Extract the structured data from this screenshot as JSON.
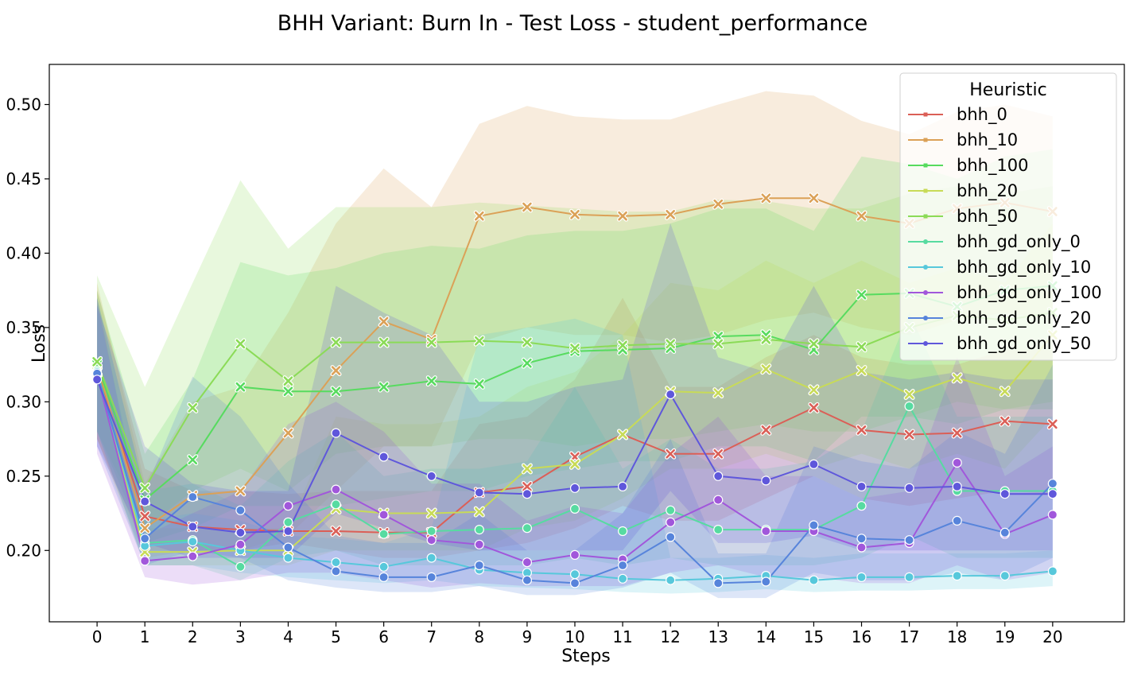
{
  "chart_data": {
    "type": "line",
    "title": "BHH Variant: Burn In - Test Loss - student_performance",
    "xlabel": "Steps",
    "ylabel": "Loss",
    "x": [
      0,
      1,
      2,
      3,
      4,
      5,
      6,
      7,
      8,
      9,
      10,
      11,
      12,
      13,
      14,
      15,
      16,
      17,
      18,
      19,
      20
    ],
    "xlim": [
      -1,
      21.5
    ],
    "ylim": [
      0.152,
      0.527
    ],
    "yticks": [
      0.2,
      0.25,
      0.3,
      0.35,
      0.4,
      0.45,
      0.5
    ],
    "ytick_labels": [
      "0.20",
      "0.25",
      "0.30",
      "0.35",
      "0.40",
      "0.45",
      "0.50"
    ],
    "grid": false,
    "legend": {
      "title": "Heuristic",
      "placement": "top-right"
    },
    "series": [
      {
        "name": "bhh_0",
        "color": "#db5f57",
        "marker": "x",
        "values": [
          0.321,
          0.223,
          0.216,
          0.214,
          0.213,
          0.213,
          0.212,
          0.212,
          0.239,
          0.243,
          0.263,
          0.278,
          0.265,
          0.265,
          0.281,
          0.296,
          0.281,
          0.278,
          0.279,
          0.287,
          0.285
        ],
        "lower": [
          0.275,
          0.2,
          0.2,
          0.2,
          0.205,
          0.2,
          0.195,
          0.195,
          0.2,
          0.205,
          0.215,
          0.23,
          0.22,
          0.22,
          0.235,
          0.25,
          0.235,
          0.23,
          0.235,
          0.24,
          0.238
        ],
        "upper": [
          0.375,
          0.255,
          0.24,
          0.24,
          0.238,
          0.24,
          0.24,
          0.24,
          0.285,
          0.29,
          0.315,
          0.37,
          0.31,
          0.31,
          0.33,
          0.345,
          0.33,
          0.325,
          0.325,
          0.335,
          0.335
        ]
      },
      {
        "name": "bhh_10",
        "color": "#dba157",
        "marker": "x",
        "values": [
          0.325,
          0.215,
          0.237,
          0.24,
          0.279,
          0.321,
          0.354,
          0.342,
          0.425,
          0.431,
          0.426,
          0.425,
          0.426,
          0.433,
          0.437,
          0.437,
          0.425,
          0.42,
          0.43,
          0.434,
          0.428
        ],
        "lower": [
          0.275,
          0.195,
          0.2,
          0.2,
          0.21,
          0.24,
          0.27,
          0.27,
          0.34,
          0.35,
          0.345,
          0.345,
          0.34,
          0.345,
          0.355,
          0.36,
          0.35,
          0.345,
          0.355,
          0.36,
          0.355
        ],
        "upper": [
          0.38,
          0.245,
          0.3,
          0.31,
          0.36,
          0.42,
          0.457,
          0.431,
          0.487,
          0.499,
          0.492,
          0.49,
          0.49,
          0.5,
          0.509,
          0.506,
          0.489,
          0.48,
          0.495,
          0.5,
          0.492
        ]
      },
      {
        "name": "bhh_100",
        "color": "#57db5f",
        "marker": "x",
        "values": [
          0.325,
          0.234,
          0.261,
          0.31,
          0.307,
          0.307,
          0.31,
          0.314,
          0.312,
          0.326,
          0.334,
          0.335,
          0.336,
          0.344,
          0.345,
          0.335,
          0.372,
          0.373,
          0.364,
          0.375,
          0.378
        ],
        "lower": [
          0.28,
          0.205,
          0.215,
          0.23,
          0.23,
          0.23,
          0.235,
          0.24,
          0.24,
          0.25,
          0.255,
          0.26,
          0.26,
          0.27,
          0.27,
          0.26,
          0.29,
          0.29,
          0.285,
          0.295,
          0.295
        ],
        "upper": [
          0.375,
          0.265,
          0.315,
          0.394,
          0.385,
          0.39,
          0.4,
          0.405,
          0.403,
          0.412,
          0.415,
          0.415,
          0.42,
          0.43,
          0.43,
          0.415,
          0.465,
          0.46,
          0.45,
          0.465,
          0.47
        ]
      },
      {
        "name": "bhh_20",
        "color": "#c8db57",
        "marker": "x",
        "values": [
          0.32,
          0.199,
          0.199,
          0.2,
          0.2,
          0.228,
          0.225,
          0.225,
          0.226,
          0.255,
          0.258,
          0.278,
          0.307,
          0.306,
          0.322,
          0.308,
          0.321,
          0.305,
          0.316,
          0.307,
          0.345
        ],
        "lower": [
          0.275,
          0.19,
          0.19,
          0.19,
          0.19,
          0.2,
          0.2,
          0.2,
          0.2,
          0.215,
          0.22,
          0.235,
          0.255,
          0.255,
          0.265,
          0.255,
          0.265,
          0.255,
          0.265,
          0.255,
          0.29
        ],
        "upper": [
          0.37,
          0.215,
          0.215,
          0.215,
          0.215,
          0.29,
          0.285,
          0.285,
          0.29,
          0.31,
          0.32,
          0.345,
          0.38,
          0.375,
          0.395,
          0.38,
          0.395,
          0.38,
          0.39,
          0.38,
          0.42
        ]
      },
      {
        "name": "bhh_50",
        "color": "#8bdb57",
        "marker": "x",
        "values": [
          0.327,
          0.242,
          0.296,
          0.339,
          0.314,
          0.34,
          0.34,
          0.34,
          0.341,
          0.34,
          0.336,
          0.338,
          0.339,
          0.339,
          0.342,
          0.339,
          0.337,
          0.35,
          0.358,
          0.355,
          0.36
        ],
        "lower": [
          0.28,
          0.215,
          0.24,
          0.255,
          0.24,
          0.265,
          0.27,
          0.27,
          0.275,
          0.275,
          0.27,
          0.275,
          0.275,
          0.28,
          0.285,
          0.28,
          0.28,
          0.29,
          0.3,
          0.295,
          0.3
        ],
        "upper": [
          0.385,
          0.31,
          0.38,
          0.449,
          0.403,
          0.431,
          0.431,
          0.431,
          0.434,
          0.432,
          0.43,
          0.428,
          0.428,
          0.436,
          0.435,
          0.43,
          0.43,
          0.44,
          0.445,
          0.44,
          0.445
        ]
      },
      {
        "name": "bhh_gd_only_0",
        "color": "#57dba1",
        "marker": "o",
        "values": [
          0.321,
          0.205,
          0.207,
          0.189,
          0.219,
          0.231,
          0.211,
          0.213,
          0.214,
          0.215,
          0.228,
          0.213,
          0.227,
          0.214,
          0.214,
          0.214,
          0.23,
          0.297,
          0.24,
          0.24,
          0.24
        ],
        "lower": [
          0.28,
          0.19,
          0.19,
          0.18,
          0.195,
          0.2,
          0.19,
          0.19,
          0.19,
          0.19,
          0.195,
          0.19,
          0.195,
          0.19,
          0.19,
          0.19,
          0.195,
          0.21,
          0.195,
          0.195,
          0.195
        ],
        "upper": [
          0.37,
          0.24,
          0.245,
          0.23,
          0.26,
          0.28,
          0.25,
          0.255,
          0.255,
          0.26,
          0.31,
          0.255,
          0.275,
          0.255,
          0.255,
          0.26,
          0.28,
          0.36,
          0.29,
          0.29,
          0.29
        ]
      },
      {
        "name": "bhh_gd_only_10",
        "color": "#57c8db",
        "marker": "o",
        "values": [
          0.32,
          0.203,
          0.206,
          0.2,
          0.195,
          0.192,
          0.189,
          0.195,
          0.187,
          0.185,
          0.184,
          0.181,
          0.18,
          0.181,
          0.183,
          0.18,
          0.182,
          0.182,
          0.183,
          0.183,
          0.186
        ],
        "lower": [
          0.28,
          0.19,
          0.19,
          0.185,
          0.182,
          0.18,
          0.178,
          0.18,
          0.176,
          0.175,
          0.174,
          0.172,
          0.171,
          0.172,
          0.174,
          0.172,
          0.173,
          0.173,
          0.174,
          0.174,
          0.176
        ],
        "upper": [
          0.365,
          0.22,
          0.225,
          0.22,
          0.21,
          0.208,
          0.205,
          0.215,
          0.345,
          0.35,
          0.356,
          0.345,
          0.195,
          0.195,
          0.197,
          0.195,
          0.198,
          0.198,
          0.198,
          0.198,
          0.2
        ]
      },
      {
        "name": "bhh_gd_only_100",
        "color": "#a157db",
        "marker": "o",
        "values": [
          0.318,
          0.193,
          0.196,
          0.204,
          0.23,
          0.241,
          0.224,
          0.207,
          0.204,
          0.192,
          0.197,
          0.194,
          0.219,
          0.234,
          0.213,
          0.213,
          0.202,
          0.205,
          0.259,
          0.211,
          0.224
        ],
        "lower": [
          0.265,
          0.182,
          0.177,
          0.18,
          0.185,
          0.185,
          0.18,
          0.175,
          0.178,
          0.176,
          0.176,
          0.176,
          0.185,
          0.19,
          0.182,
          0.182,
          0.178,
          0.178,
          0.19,
          0.18,
          0.185
        ],
        "upper": [
          0.37,
          0.21,
          0.225,
          0.24,
          0.285,
          0.3,
          0.28,
          0.245,
          0.245,
          0.22,
          0.23,
          0.225,
          0.265,
          0.29,
          0.25,
          0.25,
          0.235,
          0.24,
          0.33,
          0.25,
          0.27
        ]
      },
      {
        "name": "bhh_gd_only_20",
        "color": "#5784db",
        "marker": "o",
        "values": [
          0.319,
          0.208,
          0.236,
          0.227,
          0.202,
          0.186,
          0.182,
          0.182,
          0.19,
          0.18,
          0.178,
          0.19,
          0.209,
          0.178,
          0.179,
          0.217,
          0.208,
          0.207,
          0.22,
          0.212,
          0.245
        ],
        "lower": [
          0.27,
          0.19,
          0.2,
          0.195,
          0.18,
          0.175,
          0.172,
          0.172,
          0.176,
          0.17,
          0.17,
          0.175,
          0.185,
          0.168,
          0.168,
          0.185,
          0.18,
          0.18,
          0.185,
          0.18,
          0.195
        ],
        "upper": [
          0.37,
          0.24,
          0.317,
          0.29,
          0.245,
          0.21,
          0.205,
          0.205,
          0.225,
          0.2,
          0.2,
          0.225,
          0.275,
          0.198,
          0.198,
          0.27,
          0.26,
          0.255,
          0.28,
          0.265,
          0.325
        ]
      },
      {
        "name": "bhh_gd_only_50",
        "color": "#5f57db",
        "marker": "o",
        "values": [
          0.315,
          0.233,
          0.216,
          0.212,
          0.213,
          0.279,
          0.263,
          0.25,
          0.239,
          0.238,
          0.242,
          0.243,
          0.305,
          0.25,
          0.247,
          0.258,
          0.243,
          0.242,
          0.243,
          0.238,
          0.238
        ],
        "lower": [
          0.27,
          0.205,
          0.195,
          0.195,
          0.195,
          0.225,
          0.215,
          0.205,
          0.2,
          0.2,
          0.2,
          0.2,
          0.24,
          0.205,
          0.205,
          0.21,
          0.2,
          0.2,
          0.2,
          0.2,
          0.2
        ],
        "upper": [
          0.365,
          0.27,
          0.245,
          0.24,
          0.24,
          0.378,
          0.36,
          0.345,
          0.3,
          0.3,
          0.31,
          0.315,
          0.42,
          0.33,
          0.32,
          0.378,
          0.32,
          0.315,
          0.32,
          0.315,
          0.315
        ]
      }
    ]
  }
}
